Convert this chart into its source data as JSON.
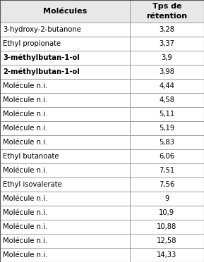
{
  "col1_header": "Molécules",
  "col2_header": "Tps de\nrétention",
  "rows": [
    {
      "molecule": "3-hydroxy-2-butanone",
      "time": "3,28",
      "bold": false
    },
    {
      "molecule": "Ethyl propionate",
      "time": "3,37",
      "bold": false
    },
    {
      "molecule": "3-méthylbutan-1-ol",
      "time": "3,9",
      "bold": true
    },
    {
      "molecule": "2-méthylbutan-1-ol",
      "time": "3,98",
      "bold": true
    },
    {
      "molecule": "Molécule n.i.",
      "time": "4,44",
      "bold": false
    },
    {
      "molecule": "Molécule n.i.",
      "time": "4,58",
      "bold": false
    },
    {
      "molecule": "Molécule n.i.",
      "time": "5,11",
      "bold": false
    },
    {
      "molecule": "Molécule n.i.",
      "time": "5,19",
      "bold": false
    },
    {
      "molecule": "Molécule n.i.",
      "time": "5,83",
      "bold": false
    },
    {
      "molecule": "Ethyl butanoate",
      "time": "6,06",
      "bold": false
    },
    {
      "molecule": "Molécule n.i.",
      "time": "7,51",
      "bold": false
    },
    {
      "molecule": "Ethyl isovalerate",
      "time": "7,56",
      "bold": false
    },
    {
      "molecule": "Molécule n.i.",
      "time": "9",
      "bold": false
    },
    {
      "molecule": "Molécule n.i.",
      "time": "10,9",
      "bold": false
    },
    {
      "molecule": "Molécule n.i.",
      "time": "10,88",
      "bold": false
    },
    {
      "molecule": "Molécule n.i.",
      "time": "12,58",
      "bold": false
    },
    {
      "molecule": "Molécule n.i.",
      "time": "14,33",
      "bold": false
    }
  ],
  "header_bg": "#e8e8e8",
  "row_bg": "#ffffff",
  "border_color": "#888888",
  "text_color": "#000000",
  "font_size": 7.2,
  "header_font_size": 8.0,
  "col_split": 0.635,
  "fig_width": 2.89,
  "fig_height": 3.72,
  "dpi": 100
}
